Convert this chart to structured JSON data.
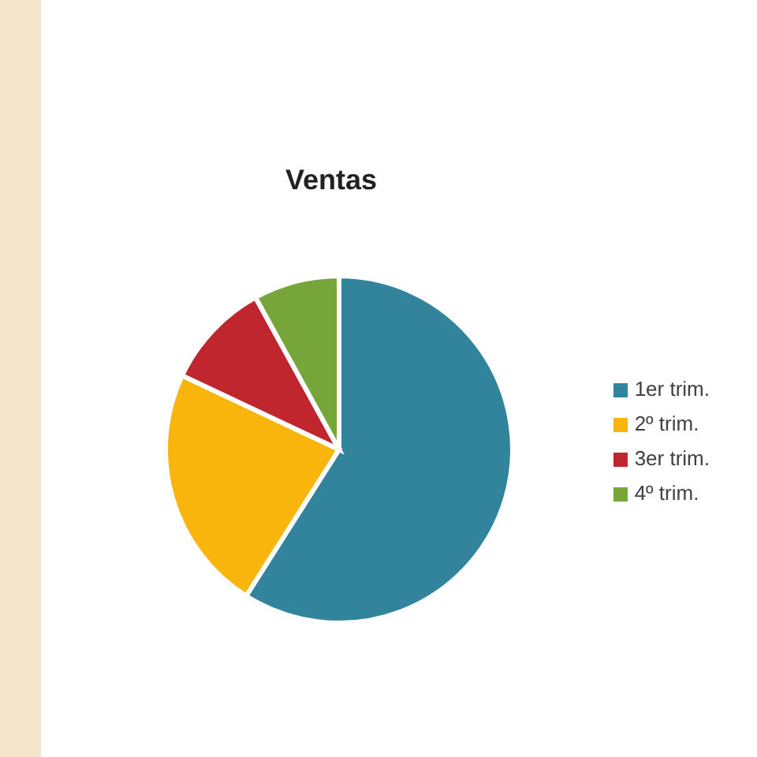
{
  "chart_data": {
    "type": "pie",
    "title": "Ventas",
    "categories": [
      "1er trim.",
      "2º trim.",
      "3er trim.",
      "4º trim."
    ],
    "values": [
      59,
      23,
      10,
      8
    ],
    "colors": [
      "#31849b",
      "#f9b50c",
      "#c0262d",
      "#76a53a"
    ],
    "legend": "right"
  }
}
